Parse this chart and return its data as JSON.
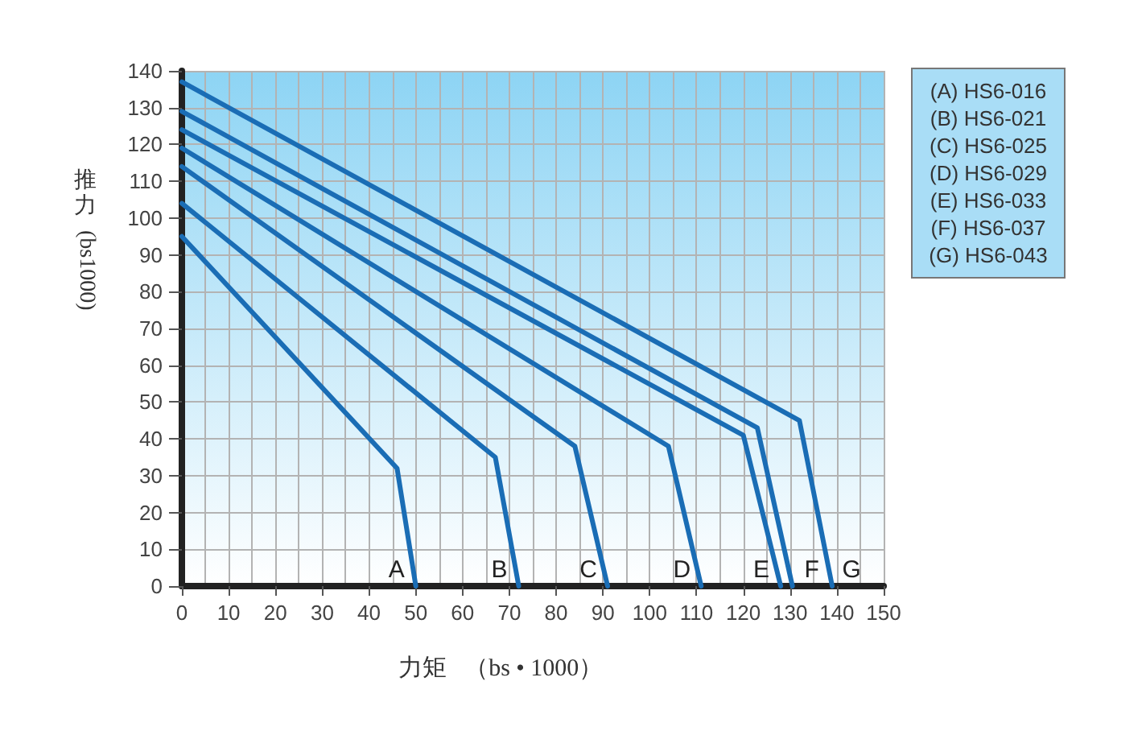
{
  "chart_data": {
    "type": "line",
    "xlabel": "力矩   （bs • 1000）",
    "ylabel": "推力 (bs1000)",
    "xlim": [
      0,
      150
    ],
    "xticks": [
      0,
      10,
      20,
      30,
      40,
      50,
      60,
      70,
      80,
      90,
      100,
      110,
      120,
      130,
      140,
      150
    ],
    "ylim": [
      0,
      140
    ],
    "yticks": [
      0,
      10,
      20,
      30,
      40,
      50,
      60,
      70,
      80,
      90,
      100,
      110,
      120,
      130,
      140
    ],
    "grid": true,
    "marker": "none",
    "line_style": "solid",
    "series": [
      {
        "name": "A",
        "color": "#1a6db5",
        "x": [
          0,
          46,
          50
        ],
        "values": [
          95,
          32,
          0
        ]
      },
      {
        "name": "B",
        "color": "#1a6db5",
        "x": [
          0,
          67,
          72
        ],
        "values": [
          104,
          35,
          0
        ]
      },
      {
        "name": "C",
        "color": "#1a6db5",
        "x": [
          0,
          84,
          91
        ],
        "values": [
          114,
          38,
          0
        ]
      },
      {
        "name": "D",
        "color": "#1a6db5",
        "x": [
          0,
          104,
          111
        ],
        "values": [
          119,
          38,
          0
        ]
      },
      {
        "name": "E",
        "color": "#1a6db5",
        "x": [
          0,
          120,
          128
        ],
        "values": [
          124,
          41,
          0
        ]
      },
      {
        "name": "F",
        "color": "#1a6db5",
        "x": [
          0,
          123,
          130.5
        ],
        "values": [
          129,
          43,
          0
        ]
      },
      {
        "name": "G",
        "color": "#1a6db5",
        "x": [
          0,
          132,
          139
        ],
        "values": [
          137,
          45,
          0
        ]
      }
    ],
    "annotations": [
      "(A) HS6-016",
      "(B) HS6-021",
      "(C) HS6-025",
      "(D) HS6-029",
      "(E) HS6-033",
      "(F) HS6-037",
      "(G) HS6-043"
    ]
  }
}
